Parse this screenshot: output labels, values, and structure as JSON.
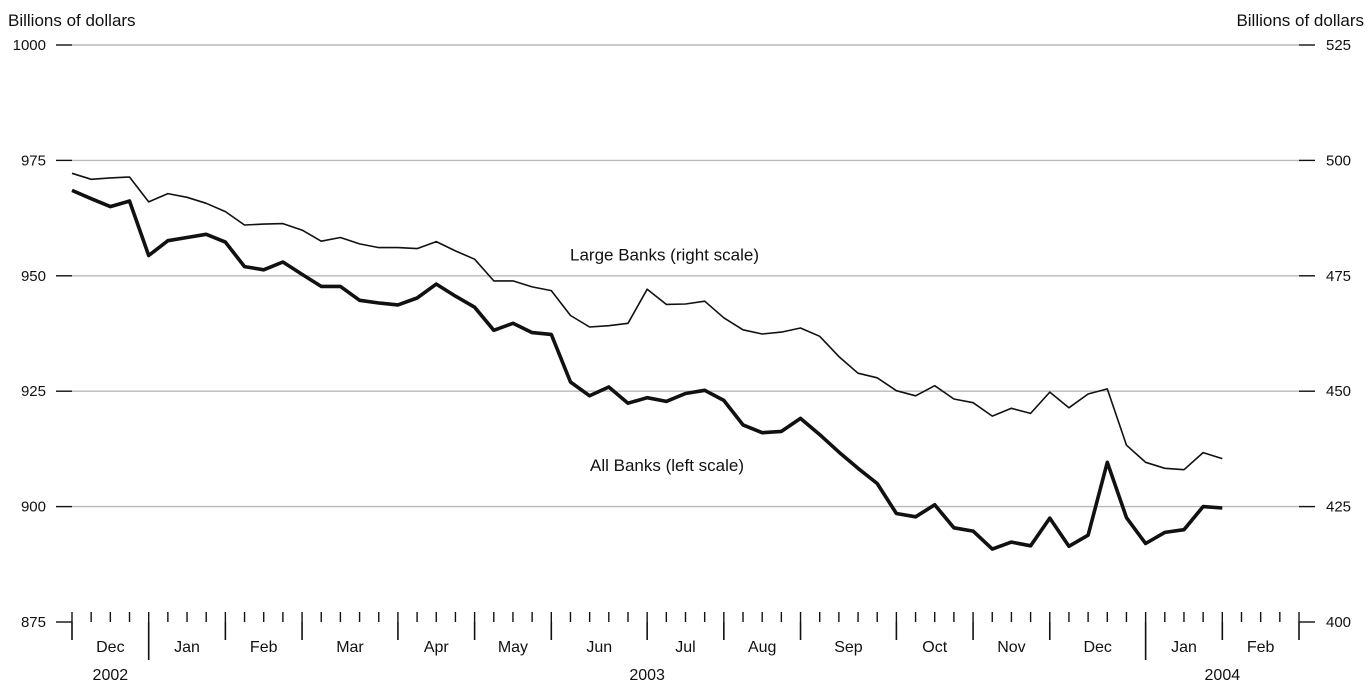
{
  "chart_data": {
    "type": "line",
    "left_axis": {
      "title": "Billions of dollars",
      "min": 875,
      "max": 1000,
      "ticks": [
        875,
        900,
        925,
        950,
        975,
        1000
      ]
    },
    "right_axis": {
      "title": "Billions of dollars",
      "min": 400,
      "max": 525,
      "ticks": [
        400,
        425,
        450,
        475,
        500,
        525
      ]
    },
    "months": [
      "Dec",
      "Jan",
      "Feb",
      "Mar",
      "Apr",
      "May",
      "Jun",
      "Jul",
      "Aug",
      "Sep",
      "Oct",
      "Nov",
      "Dec",
      "Jan",
      "Feb"
    ],
    "weeks_per_month": [
      4,
      4,
      4,
      5,
      4,
      4,
      5,
      4,
      4,
      5,
      4,
      4,
      5,
      4,
      4
    ],
    "years": [
      "2002",
      "2003",
      "2004"
    ],
    "grid": true,
    "series": [
      {
        "name": "Large Banks (right scale)",
        "axis": "right",
        "values": [
          497.2,
          495.9,
          496.2,
          496.4,
          491,
          492.8,
          492,
          490.7,
          488.9,
          486,
          486.2,
          486.3,
          484.9,
          482.5,
          483.3,
          481.9,
          481.1,
          481.1,
          480.9,
          482.4,
          480.4,
          478.6,
          473.9,
          473.9,
          472.6,
          471.8,
          466.4,
          463.9,
          464.2,
          464.7,
          472.1,
          468.8,
          468.9,
          469.5,
          465.9,
          463.3,
          462.4,
          462.8,
          463.7,
          461.9,
          457.5,
          453.9,
          452.9,
          450.1,
          449,
          451.2,
          448.3,
          447.5,
          444.6,
          446.3,
          445.2,
          449.8,
          446.4,
          449.4,
          450.5,
          438.3,
          434.6,
          433.3,
          433,
          436.7,
          435.4
        ],
        "label_position": [
          954,
          478.3
        ]
      },
      {
        "name": "All Banks (left scale)",
        "axis": "left",
        "values": [
          968.5,
          966.7,
          965,
          966.2,
          954.4,
          957.6,
          958.3,
          959,
          957.3,
          952,
          951.3,
          953,
          950.3,
          947.7,
          947.7,
          944.7,
          944.1,
          943.7,
          945.2,
          948.2,
          945.6,
          943.2,
          938.2,
          939.7,
          937.7,
          937.3,
          927,
          924,
          925.9,
          922.4,
          923.6,
          922.8,
          924.5,
          925.2,
          923,
          917.7,
          916,
          916.3,
          919.1,
          915.6,
          911.8,
          908.3,
          905,
          898.5,
          897.8,
          900.4,
          895.4,
          894.7,
          890.8,
          892.3,
          891.5,
          897.5,
          891.4,
          893.8,
          909.6,
          897.6,
          892,
          894.4,
          895,
          900,
          899.7
        ],
        "label_position": [
          941,
          907.7
        ]
      }
    ]
  }
}
